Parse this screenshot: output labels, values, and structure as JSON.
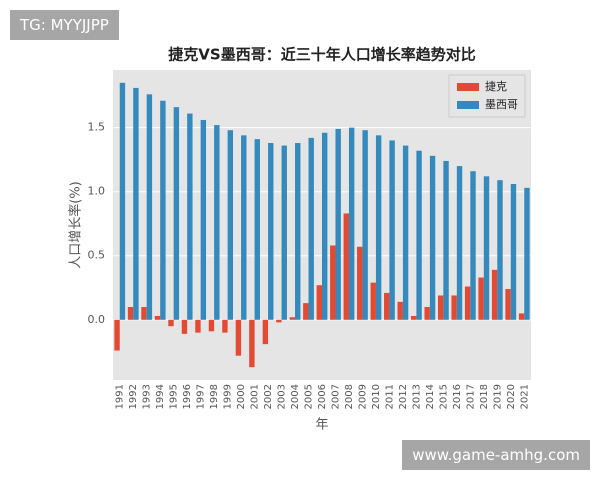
{
  "watermarks": [
    "TG: MYYJJPP",
    "www.game-amhg.com"
  ],
  "chart_data": {
    "type": "bar",
    "title": "捷克VS墨西哥：近三十年人口增长率趋势对比",
    "x_label": "年",
    "y_label": "人口增长率(%)",
    "categories": [
      "1991",
      "1992",
      "1993",
      "1994",
      "1995",
      "1996",
      "1997",
      "1998",
      "1999",
      "2000",
      "2001",
      "2002",
      "2003",
      "2004",
      "2005",
      "2006",
      "2007",
      "2008",
      "2009",
      "2010",
      "2011",
      "2012",
      "2013",
      "2014",
      "2015",
      "2016",
      "2017",
      "2018",
      "2019",
      "2020",
      "2021"
    ],
    "series": [
      {
        "name": "捷克",
        "color": "#e24a33",
        "values": [
          -0.24,
          0.1,
          0.1,
          0.03,
          -0.05,
          -0.11,
          -0.1,
          -0.09,
          -0.1,
          -0.28,
          -0.37,
          -0.19,
          -0.02,
          0.02,
          0.13,
          0.27,
          0.58,
          0.83,
          0.57,
          0.29,
          0.21,
          0.14,
          0.03,
          0.1,
          0.19,
          0.19,
          0.26,
          0.33,
          0.39,
          0.24,
          0.05
        ]
      },
      {
        "name": "墨西哥",
        "color": "#348abd",
        "values": [
          1.85,
          1.81,
          1.76,
          1.71,
          1.66,
          1.61,
          1.56,
          1.52,
          1.48,
          1.44,
          1.41,
          1.38,
          1.36,
          1.38,
          1.42,
          1.46,
          1.49,
          1.5,
          1.48,
          1.44,
          1.4,
          1.36,
          1.32,
          1.28,
          1.24,
          1.2,
          1.16,
          1.12,
          1.09,
          1.06,
          1.03
        ]
      }
    ],
    "ylim": [
      -0.47,
      1.95
    ],
    "yticks": [
      {
        "value": 0,
        "label": "0.0"
      },
      0.5,
      {
        "value": 1,
        "label": "1.0"
      },
      1.5
    ],
    "grid": true,
    "legend": "upper right"
  }
}
